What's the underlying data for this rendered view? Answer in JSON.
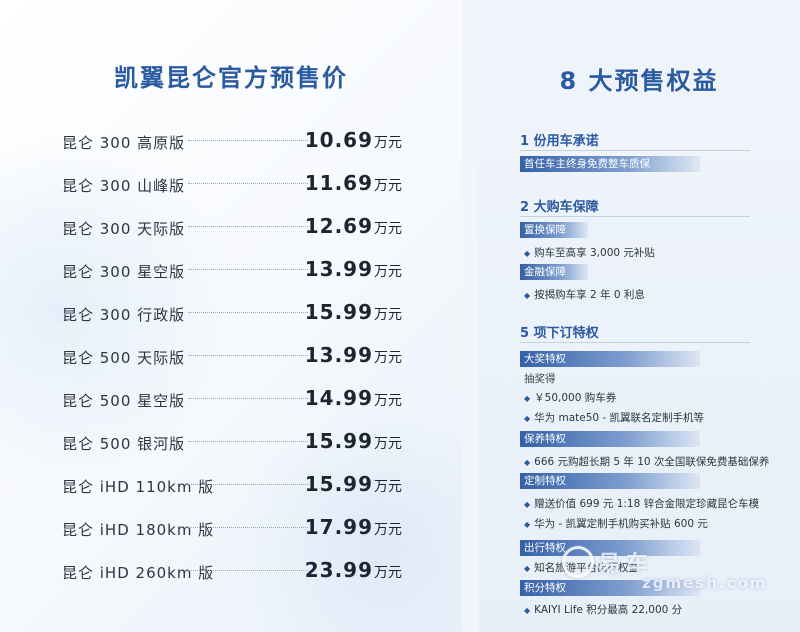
{
  "left": {
    "title": "凯翼昆仑官方预售价",
    "unit": "万元",
    "prices": [
      {
        "model": "昆仑 300 高原版",
        "price": "10.69"
      },
      {
        "model": "昆仑 300 山峰版",
        "price": "11.69"
      },
      {
        "model": "昆仑 300 天际版",
        "price": "12.69"
      },
      {
        "model": "昆仑 300 星空版",
        "price": "13.99"
      },
      {
        "model": "昆仑 300 行政版",
        "price": "15.99"
      },
      {
        "model": "昆仑 500 天际版",
        "price": "13.99"
      },
      {
        "model": "昆仑 500 星空版",
        "price": "14.99"
      },
      {
        "model": "昆仑 500 银河版",
        "price": "15.99"
      },
      {
        "model": "昆仑 iHD 110km 版",
        "price": "15.99"
      },
      {
        "model": "昆仑 iHD 180km 版",
        "price": "17.99"
      },
      {
        "model": "昆仑 iHD 260km 版",
        "price": "23.99"
      }
    ]
  },
  "right": {
    "title": "8 大预售权益",
    "sec1": {
      "heading": "1 份用车承诺",
      "bar": "首任车主终身免费整车质保"
    },
    "sec2": {
      "heading": "2 大购车保障",
      "bar1": "置换保障",
      "item1": "购车至高享 3,000 元补贴",
      "bar2": "金融保障",
      "item2": "按揭购车享 2 年 0 利息"
    },
    "sec3": {
      "heading": "5 项下订特权",
      "bar1": "大奖特权",
      "note": "抽奖得",
      "item1": "￥50,000 购车券",
      "item2": "华为 mate50 - 凯翼联名定制手机等",
      "bar2": "保养特权",
      "item3": "666 元购超长期 5 年 10 次全国联保免费基础保养",
      "bar3": "定制特权",
      "item4": "赠送价值 699 元 1:18 锌合金限定珍藏昆仑车模",
      "item5": "华为 - 凯翼定制手机购买补贴 600 元",
      "bar4": "出行特权",
      "item6": "知名旅游平台出行权益",
      "bar5": "积分特权",
      "item7": "KAIYI Life 积分最高 22,000 分"
    }
  },
  "watermark": {
    "text": "易车",
    "url": "zgmesh.com"
  }
}
